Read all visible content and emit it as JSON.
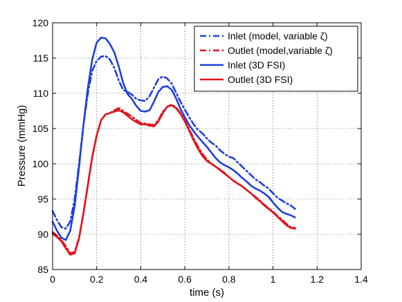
{
  "chart_data": {
    "type": "line",
    "xlabel": "time (s)",
    "ylabel": "Pressure (mmHg)",
    "xlim": [
      0,
      1.4
    ],
    "ylim": [
      85,
      120
    ],
    "xticks": [
      "0",
      "0.2",
      "0.4",
      "0.6",
      "0.8",
      "1",
      "1.2",
      "1.4"
    ],
    "yticks": [
      "85",
      "90",
      "95",
      "100",
      "105",
      "110",
      "115",
      "120"
    ],
    "grid": true,
    "legend_position": "top-right",
    "series": [
      {
        "name": "Inlet (model, variable ζ)",
        "color": "#1f3fe0",
        "style": "dashdot",
        "x": [
          0,
          0.02,
          0.04,
          0.06,
          0.08,
          0.1,
          0.12,
          0.14,
          0.16,
          0.18,
          0.2,
          0.22,
          0.24,
          0.26,
          0.28,
          0.3,
          0.32,
          0.34,
          0.36,
          0.38,
          0.4,
          0.42,
          0.44,
          0.46,
          0.48,
          0.5,
          0.52,
          0.54,
          0.56,
          0.58,
          0.6,
          0.62,
          0.64,
          0.66,
          0.68,
          0.7,
          0.72,
          0.74,
          0.76,
          0.78,
          0.8,
          0.82,
          0.84,
          0.86,
          0.88,
          0.9,
          0.92,
          0.94,
          0.96,
          0.98,
          1,
          1.02,
          1.04,
          1.06,
          1.08,
          1.1
        ],
        "y": [
          93.3,
          92,
          91,
          90.8,
          91.8,
          95,
          100,
          105.5,
          110,
          113.2,
          114.6,
          115.2,
          115.3,
          114.8,
          113.6,
          111.8,
          110.5,
          110.2,
          109.8,
          109.2,
          109,
          108.9,
          109.6,
          110.8,
          112,
          112.4,
          112.1,
          111.4,
          110.1,
          108.8,
          107.7,
          106.6,
          105.6,
          104.8,
          104.3,
          103.6,
          103,
          102.6,
          101.9,
          101.4,
          101,
          100.8,
          100.2,
          99.6,
          99,
          98.4,
          97.8,
          97.4,
          96.9,
          96.5,
          95.8,
          95.2,
          94.8,
          94.4,
          94.1,
          93.6
        ]
      },
      {
        "name": "Outlet (model,variable ζ)",
        "color": "#e0141e",
        "style": "dashdot",
        "x": [
          0,
          0.02,
          0.04,
          0.06,
          0.08,
          0.1,
          0.12,
          0.14,
          0.16,
          0.18,
          0.2,
          0.22,
          0.24,
          0.26,
          0.28,
          0.3,
          0.32,
          0.34,
          0.36,
          0.38,
          0.4,
          0.42,
          0.44,
          0.46,
          0.48,
          0.5,
          0.52,
          0.54,
          0.56,
          0.58,
          0.6,
          0.62,
          0.64,
          0.66,
          0.68,
          0.7,
          0.72,
          0.74,
          0.76,
          0.78,
          0.8,
          0.82,
          0.84,
          0.86,
          0.88,
          0.9,
          0.92,
          0.94,
          0.96,
          0.98,
          1,
          1.02,
          1.04,
          1.06,
          1.08,
          1.1
        ],
        "y": [
          90.3,
          89.8,
          89.2,
          88.3,
          87.3,
          87.5,
          89.5,
          93,
          97,
          101,
          104,
          106.2,
          107,
          107.2,
          107.6,
          107.9,
          107.5,
          107.1,
          106.7,
          106.2,
          105.8,
          105.7,
          105.6,
          105.5,
          106.2,
          107.4,
          108.1,
          108.4,
          108,
          107.2,
          106.2,
          104.9,
          103.6,
          102.4,
          101.4,
          100.6,
          100,
          99.6,
          99.2,
          98.7,
          98.1,
          97.6,
          97.2,
          96.8,
          96.3,
          95.8,
          95.3,
          94.8,
          94.2,
          93.7,
          93.2,
          92.6,
          92.1,
          91.5,
          91,
          90.9
        ]
      },
      {
        "name": "Inlet (3D FSI)",
        "color": "#1f3fe0",
        "style": "solid",
        "x": [
          0,
          0.02,
          0.04,
          0.06,
          0.08,
          0.1,
          0.12,
          0.14,
          0.16,
          0.18,
          0.2,
          0.22,
          0.24,
          0.26,
          0.28,
          0.3,
          0.32,
          0.34,
          0.36,
          0.38,
          0.4,
          0.42,
          0.44,
          0.46,
          0.48,
          0.5,
          0.52,
          0.54,
          0.56,
          0.58,
          0.6,
          0.62,
          0.64,
          0.66,
          0.68,
          0.7,
          0.72,
          0.74,
          0.76,
          0.78,
          0.8,
          0.82,
          0.84,
          0.86,
          0.88,
          0.9,
          0.92,
          0.94,
          0.96,
          0.98,
          1,
          1.02,
          1.04,
          1.06,
          1.08,
          1.1
        ],
        "y": [
          91.8,
          90.5,
          89.5,
          89.2,
          90.5,
          94,
          99.5,
          105.5,
          110.8,
          114.8,
          117.2,
          117.9,
          117.8,
          117,
          115.8,
          113.8,
          111.5,
          109.9,
          109.2,
          108.2,
          107.5,
          107.4,
          107.6,
          108.8,
          110.2,
          110.9,
          111,
          110.5,
          109.3,
          107.8,
          106.6,
          105.5,
          104.6,
          103.8,
          103.1,
          102.4,
          101.6,
          100.8,
          100.2,
          99.8,
          99.5,
          99.1,
          98.6,
          98,
          97.5,
          96.9,
          96.5,
          96.2,
          95.8,
          95.3,
          94.5,
          93.8,
          93.2,
          92.9,
          92.7,
          92.4
        ]
      },
      {
        "name": "Outlet (3D FSI)",
        "color": "#e0141e",
        "style": "solid",
        "x": [
          0,
          0.02,
          0.04,
          0.06,
          0.08,
          0.1,
          0.12,
          0.14,
          0.16,
          0.18,
          0.2,
          0.22,
          0.24,
          0.26,
          0.28,
          0.3,
          0.32,
          0.34,
          0.36,
          0.38,
          0.4,
          0.42,
          0.44,
          0.46,
          0.48,
          0.5,
          0.52,
          0.54,
          0.56,
          0.58,
          0.6,
          0.62,
          0.64,
          0.66,
          0.68,
          0.7,
          0.72,
          0.74,
          0.76,
          0.78,
          0.8,
          0.82,
          0.84,
          0.86,
          0.88,
          0.9,
          0.92,
          0.94,
          0.96,
          0.98,
          1,
          1.02,
          1.04,
          1.06,
          1.08,
          1.1
        ],
        "y": [
          90.1,
          89.6,
          89,
          88,
          87.1,
          87.3,
          89.4,
          93,
          97,
          101,
          104,
          106.2,
          107,
          107.2,
          107.4,
          107.6,
          107.3,
          106.8,
          106.3,
          105.9,
          105.6,
          105.6,
          105.4,
          105.3,
          106,
          107.2,
          108.1,
          108.3,
          107.9,
          107.1,
          106,
          104.7,
          103.3,
          102.1,
          101.1,
          100.4,
          100,
          99.6,
          99.1,
          98.6,
          98.1,
          97.6,
          97.2,
          96.8,
          96.3,
          95.8,
          95.2,
          94.7,
          94.1,
          93.6,
          93.1,
          92.5,
          91.9,
          91.3,
          90.9,
          90.8
        ]
      }
    ]
  }
}
